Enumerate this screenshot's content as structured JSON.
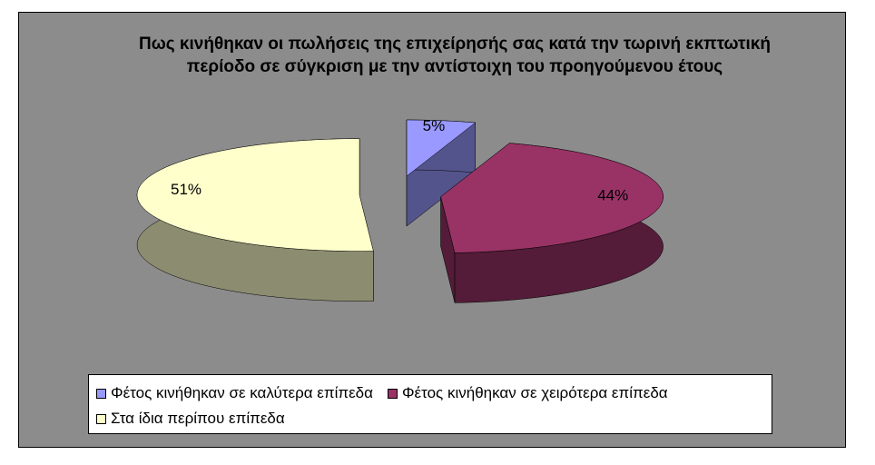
{
  "chart_data": {
    "type": "pie3d",
    "title": "Πως κινήθηκαν οι πωλήσεις της επιχείρησής σας κατά την τωρινή εκπτωτική περίοδο σε σύγκριση  με την αντίστοιχη του προηγούμενου έτους",
    "categories": [
      "Φέτος κινήθηκαν σε καλύτερα επίπεδα",
      "Φέτος κινήθηκαν σε χειρότερα επίπεδα",
      "Στα ίδια περίπου επίπεδα"
    ],
    "values": [
      5,
      44,
      51
    ],
    "value_labels": [
      "5%",
      "44%",
      "51%"
    ],
    "colors": [
      "#9999ff",
      "#993366",
      "#ffffcc"
    ],
    "legend": "bottom"
  }
}
